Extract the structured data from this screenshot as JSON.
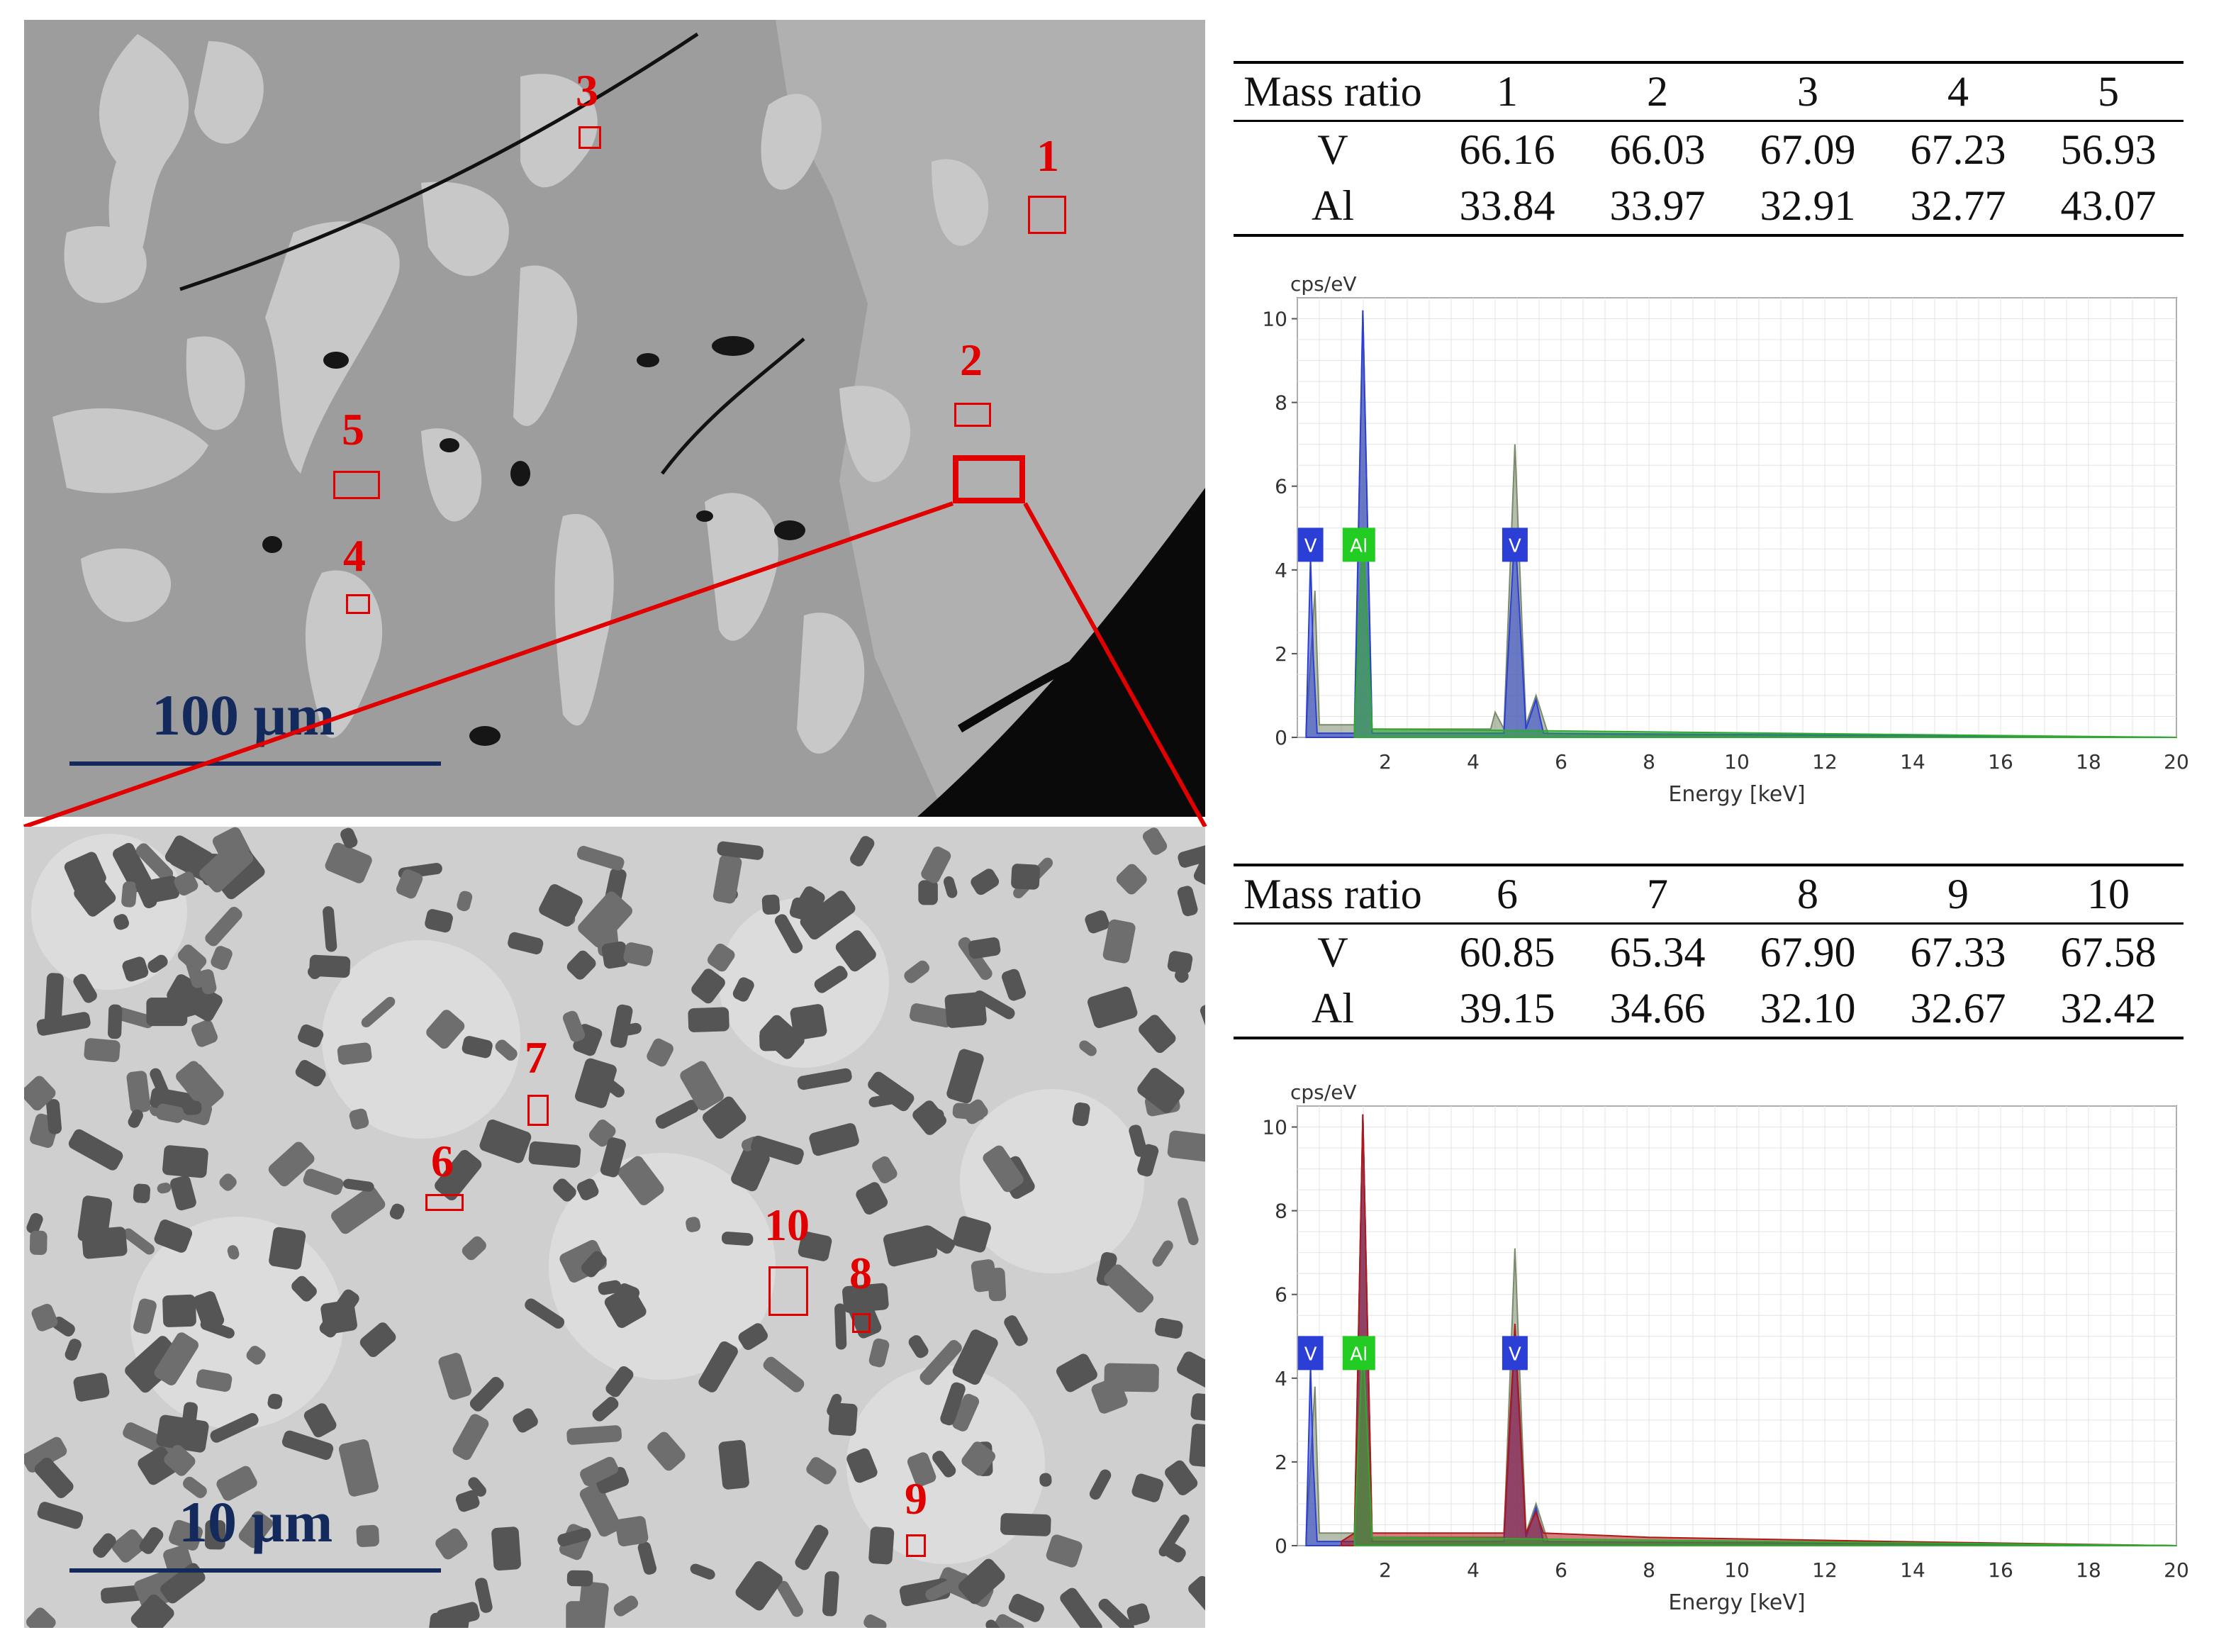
{
  "top_image": {
    "scale_bar": "100 μm",
    "labels": [
      "1",
      "2",
      "3",
      "4",
      "5"
    ]
  },
  "bottom_image": {
    "scale_bar": "10 μm",
    "labels": [
      "6",
      "7",
      "8",
      "9",
      "10"
    ]
  },
  "table_top": {
    "header": [
      "Mass ratio",
      "1",
      "2",
      "3",
      "4",
      "5"
    ],
    "rows": [
      [
        "V",
        "66.16",
        "66.03",
        "67.09",
        "67.23",
        "56.93"
      ],
      [
        "Al",
        "33.84",
        "33.97",
        "32.91",
        "32.77",
        "43.07"
      ]
    ]
  },
  "table_bottom": {
    "header": [
      "Mass ratio",
      "6",
      "7",
      "8",
      "9",
      "10"
    ],
    "rows": [
      [
        "V",
        "60.85",
        "65.34",
        "67.90",
        "67.33",
        "67.58"
      ],
      [
        "Al",
        "39.15",
        "34.66",
        "32.10",
        "32.67",
        "32.42"
      ]
    ]
  },
  "chart_data": [
    {
      "type": "line",
      "ylabel": "cps/eV",
      "xlabel": "Energy [keV]",
      "xlim": [
        0,
        20
      ],
      "ylim": [
        0,
        10.5
      ],
      "x_ticks": [
        2,
        4,
        6,
        8,
        10,
        12,
        14,
        16,
        18,
        20
      ],
      "y_ticks": [
        0,
        2,
        4,
        6,
        8,
        10
      ],
      "element_markers": [
        {
          "label": "V",
          "energy": 0.3,
          "color": "#2b3fd6"
        },
        {
          "label": "Al",
          "energy": 1.4,
          "color": "#22cc22"
        },
        {
          "label": "V",
          "energy": 4.95,
          "color": "#2b3fd6"
        }
      ],
      "series": [
        {
          "color": "#7a8a6a",
          "x": [
            0.2,
            0.4,
            0.5,
            1.3,
            1.49,
            1.7,
            4.4,
            4.5,
            4.7,
            4.95,
            5.2,
            5.43,
            5.7,
            8,
            20
          ],
          "values": [
            0.2,
            3.5,
            0.3,
            0.3,
            10.2,
            0.2,
            0.2,
            0.6,
            0.2,
            7.0,
            0.3,
            1.0,
            0.1,
            0.05,
            0.0
          ]
        },
        {
          "color": "#2b3fd6",
          "x": [
            0.2,
            0.3,
            0.36,
            0.45,
            1.3,
            1.49,
            1.7,
            4.7,
            4.95,
            5.2,
            5.43,
            5.6,
            20
          ],
          "values": [
            0.1,
            4.3,
            2.0,
            0.1,
            0.1,
            10.2,
            0.1,
            0.1,
            5.0,
            0.2,
            0.9,
            0.1,
            0.0
          ]
        },
        {
          "color": "#2eaa2e",
          "x": [
            1.3,
            1.49,
            1.7,
            20
          ],
          "values": [
            0.2,
            5.0,
            0.2,
            0.0
          ]
        }
      ]
    },
    {
      "type": "line",
      "ylabel": "cps/eV",
      "xlabel": "Energy [keV]",
      "xlim": [
        0,
        20
      ],
      "ylim": [
        0,
        10.5
      ],
      "x_ticks": [
        2,
        4,
        6,
        8,
        10,
        12,
        14,
        16,
        18,
        20
      ],
      "y_ticks": [
        0,
        2,
        4,
        6,
        8,
        10
      ],
      "element_markers": [
        {
          "label": "V",
          "energy": 0.3,
          "color": "#2b3fd6"
        },
        {
          "label": "Al",
          "energy": 1.4,
          "color": "#22cc22"
        },
        {
          "label": "V",
          "energy": 4.95,
          "color": "#2b3fd6"
        }
      ],
      "series": [
        {
          "color": "#7a8a6a",
          "x": [
            0.2,
            0.4,
            0.5,
            1.3,
            1.49,
            1.7,
            4.7,
            4.95,
            5.2,
            5.43,
            5.7,
            20
          ],
          "values": [
            0.2,
            3.8,
            0.3,
            0.3,
            10.3,
            0.2,
            0.2,
            7.1,
            0.3,
            1.0,
            0.1,
            0.0
          ]
        },
        {
          "color": "#2b3fd6",
          "x": [
            0.2,
            0.3,
            0.36,
            0.45,
            1.3,
            1.49,
            1.7,
            4.7,
            4.95,
            5.2,
            5.43,
            5.6,
            20
          ],
          "values": [
            0.1,
            4.3,
            2.0,
            0.1,
            0.1,
            10.3,
            0.1,
            0.1,
            5.0,
            0.2,
            0.9,
            0.1,
            0.0
          ]
        },
        {
          "color": "#b01818",
          "x": [
            1.0,
            1.3,
            1.49,
            1.7,
            2.5,
            4.7,
            4.95,
            5.2,
            5.43,
            5.6,
            8,
            13.5,
            20
          ],
          "values": [
            0.1,
            0.3,
            10.3,
            0.3,
            0.3,
            0.3,
            5.3,
            0.3,
            0.8,
            0.3,
            0.2,
            0.1,
            0.0
          ]
        },
        {
          "color": "#2eaa2e",
          "x": [
            1.3,
            1.49,
            1.7,
            20
          ],
          "values": [
            0.2,
            5.0,
            0.2,
            0.0
          ]
        }
      ]
    }
  ]
}
